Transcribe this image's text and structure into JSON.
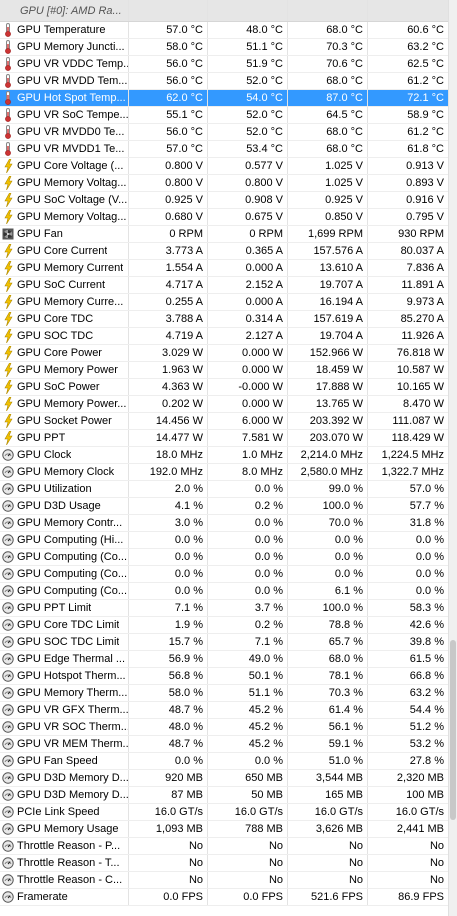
{
  "header": {
    "title": "GPU [#0]: AMD Ra..."
  },
  "rows": [
    {
      "icon": "thermometer-icon",
      "label": "GPU Temperature",
      "v": [
        "57.0 °C",
        "48.0 °C",
        "68.0 °C",
        "60.6 °C"
      ]
    },
    {
      "icon": "thermometer-icon",
      "label": "GPU Memory Juncti...",
      "v": [
        "58.0 °C",
        "51.1 °C",
        "70.3 °C",
        "63.2 °C"
      ]
    },
    {
      "icon": "thermometer-icon",
      "label": "GPU VR VDDC Temp...",
      "v": [
        "56.0 °C",
        "51.9 °C",
        "70.6 °C",
        "62.5 °C"
      ]
    },
    {
      "icon": "thermometer-icon",
      "label": "GPU VR MVDD Tem...",
      "v": [
        "56.0 °C",
        "52.0 °C",
        "68.0 °C",
        "61.2 °C"
      ]
    },
    {
      "icon": "thermometer-icon",
      "label": "GPU Hot Spot Temp...",
      "v": [
        "62.0 °C",
        "54.0 °C",
        "87.0 °C",
        "72.1 °C"
      ],
      "selected": true
    },
    {
      "icon": "thermometer-icon",
      "label": "GPU VR SoC Tempe...",
      "v": [
        "55.1 °C",
        "52.0 °C",
        "64.5 °C",
        "58.9 °C"
      ]
    },
    {
      "icon": "thermometer-icon",
      "label": "GPU VR MVDD0 Te...",
      "v": [
        "56.0 °C",
        "52.0 °C",
        "68.0 °C",
        "61.2 °C"
      ]
    },
    {
      "icon": "thermometer-icon",
      "label": "GPU VR MVDD1 Te...",
      "v": [
        "57.0 °C",
        "53.4 °C",
        "68.0 °C",
        "61.8 °C"
      ]
    },
    {
      "icon": "bolt-icon",
      "label": "GPU Core Voltage (...",
      "v": [
        "0.800 V",
        "0.577 V",
        "1.025 V",
        "0.913 V"
      ]
    },
    {
      "icon": "bolt-icon",
      "label": "GPU Memory Voltag...",
      "v": [
        "0.800 V",
        "0.800 V",
        "1.025 V",
        "0.893 V"
      ]
    },
    {
      "icon": "bolt-icon",
      "label": "GPU SoC Voltage (V...",
      "v": [
        "0.925 V",
        "0.908 V",
        "0.925 V",
        "0.916 V"
      ]
    },
    {
      "icon": "bolt-icon",
      "label": "GPU Memory Voltag...",
      "v": [
        "0.680 V",
        "0.675 V",
        "0.850 V",
        "0.795 V"
      ]
    },
    {
      "icon": "fan-icon",
      "label": "GPU Fan",
      "v": [
        "0 RPM",
        "0 RPM",
        "1,699 RPM",
        "930 RPM"
      ]
    },
    {
      "icon": "bolt-icon",
      "label": "GPU Core Current",
      "v": [
        "3.773 A",
        "0.365 A",
        "157.576 A",
        "80.037 A"
      ]
    },
    {
      "icon": "bolt-icon",
      "label": "GPU Memory Current",
      "v": [
        "1.554 A",
        "0.000 A",
        "13.610 A",
        "7.836 A"
      ]
    },
    {
      "icon": "bolt-icon",
      "label": "GPU SoC Current",
      "v": [
        "4.717 A",
        "2.152 A",
        "19.707 A",
        "11.891 A"
      ]
    },
    {
      "icon": "bolt-icon",
      "label": "GPU Memory Curre...",
      "v": [
        "0.255 A",
        "0.000 A",
        "16.194 A",
        "9.973 A"
      ]
    },
    {
      "icon": "bolt-icon",
      "label": "GPU Core TDC",
      "v": [
        "3.788 A",
        "0.314 A",
        "157.619 A",
        "85.270 A"
      ]
    },
    {
      "icon": "bolt-icon",
      "label": "GPU SOC TDC",
      "v": [
        "4.719 A",
        "2.127 A",
        "19.704 A",
        "11.926 A"
      ]
    },
    {
      "icon": "bolt-icon",
      "label": "GPU Core Power",
      "v": [
        "3.029 W",
        "0.000 W",
        "152.966 W",
        "76.818 W"
      ]
    },
    {
      "icon": "bolt-icon",
      "label": "GPU Memory Power",
      "v": [
        "1.963 W",
        "0.000 W",
        "18.459 W",
        "10.587 W"
      ]
    },
    {
      "icon": "bolt-icon",
      "label": "GPU SoC Power",
      "v": [
        "4.363 W",
        "-0.000 W",
        "17.888 W",
        "10.165 W"
      ]
    },
    {
      "icon": "bolt-icon",
      "label": "GPU Memory Power...",
      "v": [
        "0.202 W",
        "0.000 W",
        "13.765 W",
        "8.470 W"
      ]
    },
    {
      "icon": "bolt-icon",
      "label": "GPU Socket Power",
      "v": [
        "14.456 W",
        "6.000 W",
        "203.392 W",
        "111.087 W"
      ]
    },
    {
      "icon": "bolt-icon",
      "label": "GPU PPT",
      "v": [
        "14.477 W",
        "7.581 W",
        "203.070 W",
        "118.429 W"
      ]
    },
    {
      "icon": "gauge-icon",
      "label": "GPU Clock",
      "v": [
        "18.0 MHz",
        "1.0 MHz",
        "2,214.0 MHz",
        "1,224.5 MHz"
      ]
    },
    {
      "icon": "gauge-icon",
      "label": "GPU Memory Clock",
      "v": [
        "192.0 MHz",
        "8.0 MHz",
        "2,580.0 MHz",
        "1,322.7 MHz"
      ]
    },
    {
      "icon": "gauge-icon",
      "label": "GPU Utilization",
      "v": [
        "2.0 %",
        "0.0 %",
        "99.0 %",
        "57.0 %"
      ]
    },
    {
      "icon": "gauge-icon",
      "label": "GPU D3D Usage",
      "v": [
        "4.1 %",
        "0.2 %",
        "100.0 %",
        "57.7 %"
      ]
    },
    {
      "icon": "gauge-icon",
      "label": "GPU Memory Contr...",
      "v": [
        "3.0 %",
        "0.0 %",
        "70.0 %",
        "31.8 %"
      ]
    },
    {
      "icon": "gauge-icon",
      "label": "GPU Computing (Hi...",
      "v": [
        "0.0 %",
        "0.0 %",
        "0.0 %",
        "0.0 %"
      ]
    },
    {
      "icon": "gauge-icon",
      "label": "GPU Computing (Co...",
      "v": [
        "0.0 %",
        "0.0 %",
        "0.0 %",
        "0.0 %"
      ]
    },
    {
      "icon": "gauge-icon",
      "label": "GPU Computing (Co...",
      "v": [
        "0.0 %",
        "0.0 %",
        "0.0 %",
        "0.0 %"
      ]
    },
    {
      "icon": "gauge-icon",
      "label": "GPU Computing (Co...",
      "v": [
        "0.0 %",
        "0.0 %",
        "6.1 %",
        "0.0 %"
      ]
    },
    {
      "icon": "gauge-icon",
      "label": "GPU PPT Limit",
      "v": [
        "7.1 %",
        "3.7 %",
        "100.0 %",
        "58.3 %"
      ]
    },
    {
      "icon": "gauge-icon",
      "label": "GPU Core TDC Limit",
      "v": [
        "1.9 %",
        "0.2 %",
        "78.8 %",
        "42.6 %"
      ]
    },
    {
      "icon": "gauge-icon",
      "label": "GPU SOC TDC Limit",
      "v": [
        "15.7 %",
        "7.1 %",
        "65.7 %",
        "39.8 %"
      ]
    },
    {
      "icon": "gauge-icon",
      "label": "GPU Edge Thermal ...",
      "v": [
        "56.9 %",
        "49.0 %",
        "68.0 %",
        "61.5 %"
      ]
    },
    {
      "icon": "gauge-icon",
      "label": "GPU Hotspot Therm...",
      "v": [
        "56.8 %",
        "50.1 %",
        "78.1 %",
        "66.8 %"
      ]
    },
    {
      "icon": "gauge-icon",
      "label": "GPU Memory Therm...",
      "v": [
        "58.0 %",
        "51.1 %",
        "70.3 %",
        "63.2 %"
      ]
    },
    {
      "icon": "gauge-icon",
      "label": "GPU VR GFX Therm...",
      "v": [
        "48.7 %",
        "45.2 %",
        "61.4 %",
        "54.4 %"
      ]
    },
    {
      "icon": "gauge-icon",
      "label": "GPU VR SOC Therm...",
      "v": [
        "48.0 %",
        "45.2 %",
        "56.1 %",
        "51.2 %"
      ]
    },
    {
      "icon": "gauge-icon",
      "label": "GPU VR MEM Therm...",
      "v": [
        "48.7 %",
        "45.2 %",
        "59.1 %",
        "53.2 %"
      ]
    },
    {
      "icon": "gauge-icon",
      "label": "GPU Fan Speed",
      "v": [
        "0.0 %",
        "0.0 %",
        "51.0 %",
        "27.8 %"
      ]
    },
    {
      "icon": "gauge-icon",
      "label": "GPU D3D Memory D...",
      "v": [
        "920 MB",
        "650 MB",
        "3,544 MB",
        "2,320 MB"
      ]
    },
    {
      "icon": "gauge-icon",
      "label": "GPU D3D Memory D...",
      "v": [
        "87 MB",
        "50 MB",
        "165 MB",
        "100 MB"
      ]
    },
    {
      "icon": "gauge-icon",
      "label": "PCIe Link Speed",
      "v": [
        "16.0 GT/s",
        "16.0 GT/s",
        "16.0 GT/s",
        "16.0 GT/s"
      ]
    },
    {
      "icon": "gauge-icon",
      "label": "GPU Memory Usage",
      "v": [
        "1,093 MB",
        "788 MB",
        "3,626 MB",
        "2,441 MB"
      ]
    },
    {
      "icon": "gauge-icon",
      "label": "Throttle Reason - P...",
      "v": [
        "No",
        "No",
        "No",
        "No"
      ]
    },
    {
      "icon": "gauge-icon",
      "label": "Throttle Reason - T...",
      "v": [
        "No",
        "No",
        "No",
        "No"
      ]
    },
    {
      "icon": "gauge-icon",
      "label": "Throttle Reason - C...",
      "v": [
        "No",
        "No",
        "No",
        "No"
      ]
    },
    {
      "icon": "gauge-icon",
      "label": "Framerate",
      "v": [
        "0.0 FPS",
        "0.0 FPS",
        "521.6 FPS",
        "86.9 FPS"
      ]
    }
  ],
  "colors": {
    "selected_bg": "#3399ff",
    "header_bg": "#e6e6e6",
    "thermo": "#cc3333",
    "bolt": "#e8b800",
    "gauge": "#666666"
  }
}
